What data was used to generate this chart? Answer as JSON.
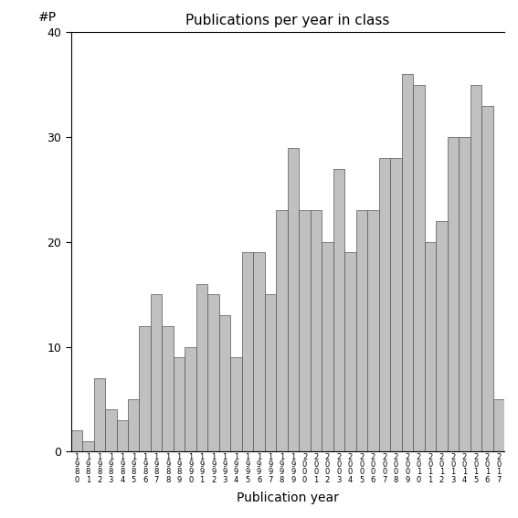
{
  "title": "Publications per year in class",
  "xlabel": "Publication year",
  "ylabel": "#P",
  "bar_color": "#c0c0c0",
  "edge_color": "#555555",
  "background_color": "#ffffff",
  "ylim": [
    0,
    40
  ],
  "yticks": [
    0,
    10,
    20,
    30,
    40
  ],
  "years": [
    "1980",
    "1981",
    "1982",
    "1983",
    "1984",
    "1985",
    "1986",
    "1987",
    "1988",
    "1989",
    "1990",
    "1991",
    "1992",
    "1993",
    "1994",
    "1995",
    "1996",
    "1997",
    "1998",
    "1999",
    "2000",
    "2001",
    "2002",
    "2003",
    "2004",
    "2005",
    "2006",
    "2007",
    "2008",
    "2009",
    "2010",
    "2011",
    "2012",
    "2013",
    "2014",
    "2015",
    "2016",
    "2017"
  ],
  "values": [
    2,
    1,
    7,
    4,
    3,
    5,
    12,
    15,
    12,
    9,
    10,
    16,
    15,
    13,
    9,
    19,
    19,
    15,
    23,
    29,
    23,
    23,
    20,
    27,
    19,
    23,
    23,
    28,
    28,
    36,
    35,
    20,
    22,
    30,
    30,
    35,
    33,
    5
  ],
  "figsize": [
    5.67,
    5.67
  ],
  "dpi": 100
}
